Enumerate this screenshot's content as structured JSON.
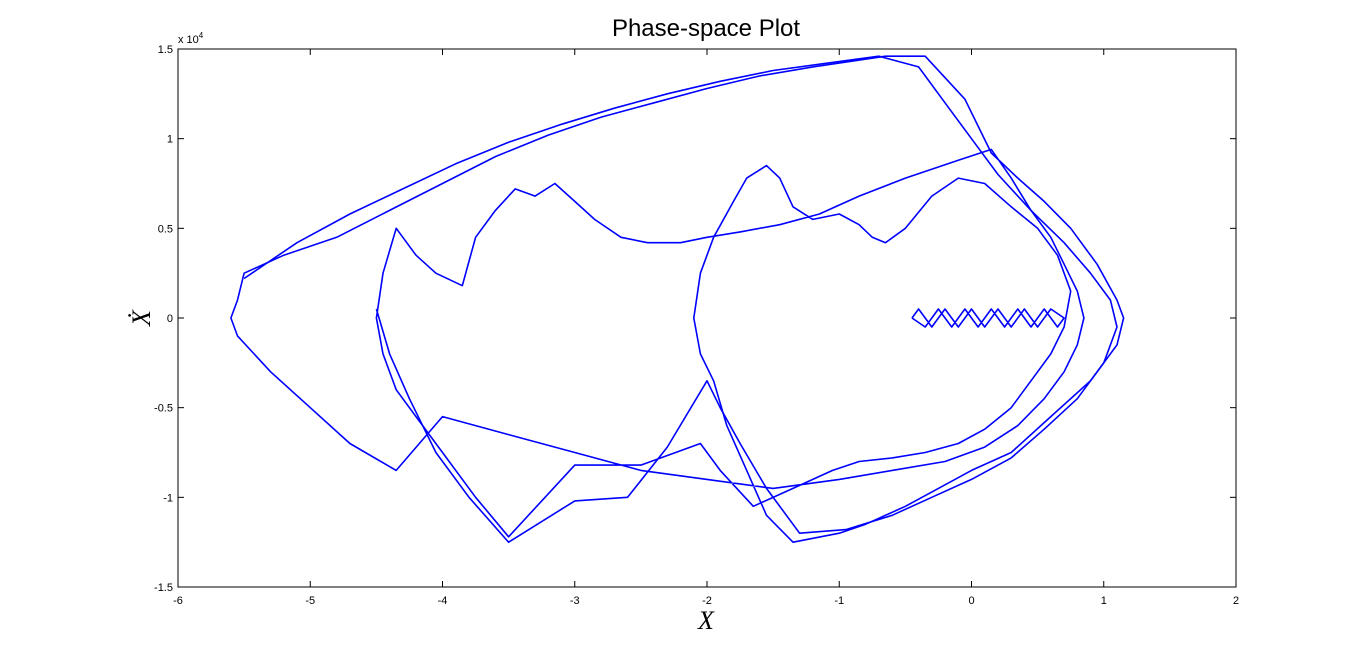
{
  "chart_data": {
    "type": "line",
    "title": "Phase-space Plot",
    "xlabel": "X",
    "ylabel": "Ẋ",
    "y_exponent_label": "x 10",
    "y_exponent_power": "4",
    "xlim": [
      -6,
      2
    ],
    "ylim": [
      -1.5,
      1.5
    ],
    "x_ticks": [
      "-6",
      "-5",
      "-4",
      "-3",
      "-2",
      "-1",
      "0",
      "1",
      "2"
    ],
    "y_ticks": [
      "1.5",
      "1",
      "0.5",
      "0",
      "-0.5",
      "-1",
      "-1.5"
    ],
    "grid": false,
    "series_color": "#0000ff",
    "series": [
      {
        "values_note_excluded": true,
        "points": [
          [
            -0.65,
            1.46
          ],
          [
            -0.35,
            1.46
          ],
          [
            -0.05,
            1.22
          ],
          [
            0.15,
            0.92
          ],
          [
            0.35,
            0.78
          ],
          [
            0.55,
            0.65
          ],
          [
            0.75,
            0.5
          ],
          [
            0.95,
            0.3
          ],
          [
            1.1,
            0.1
          ],
          [
            1.15,
            0.0
          ],
          [
            1.1,
            -0.15
          ],
          [
            0.9,
            -0.35
          ],
          [
            0.6,
            -0.55
          ],
          [
            0.3,
            -0.75
          ],
          [
            0.0,
            -0.85
          ],
          [
            -0.25,
            -0.95
          ],
          [
            -0.5,
            -1.05
          ],
          [
            -0.8,
            -1.15
          ],
          [
            -1.0,
            -1.2
          ],
          [
            -1.35,
            -1.25
          ],
          [
            -1.55,
            -1.1
          ],
          [
            -1.7,
            -0.85
          ],
          [
            -1.85,
            -0.6
          ],
          [
            -1.95,
            -0.35
          ],
          [
            -2.05,
            -0.2
          ],
          [
            -2.1,
            0.0
          ],
          [
            -2.05,
            0.25
          ],
          [
            -1.95,
            0.45
          ],
          [
            -1.8,
            0.65
          ],
          [
            -1.7,
            0.78
          ],
          [
            -1.55,
            0.85
          ],
          [
            -1.45,
            0.78
          ],
          [
            -1.35,
            0.62
          ],
          [
            -1.2,
            0.55
          ],
          [
            -1.0,
            0.58
          ],
          [
            -0.85,
            0.52
          ],
          [
            -0.75,
            0.45
          ],
          [
            -0.65,
            0.42
          ],
          [
            -0.5,
            0.5
          ],
          [
            -0.3,
            0.68
          ],
          [
            -0.1,
            0.78
          ],
          [
            0.1,
            0.75
          ],
          [
            0.3,
            0.62
          ],
          [
            0.5,
            0.5
          ],
          [
            0.65,
            0.35
          ],
          [
            0.75,
            0.15
          ],
          [
            0.7,
            -0.05
          ],
          [
            0.6,
            -0.2
          ],
          [
            0.45,
            -0.35
          ],
          [
            0.3,
            -0.5
          ],
          [
            0.1,
            -0.62
          ],
          [
            -0.1,
            -0.7
          ],
          [
            -0.35,
            -0.75
          ],
          [
            -0.6,
            -0.78
          ],
          [
            -0.85,
            -0.8
          ],
          [
            -1.05,
            -0.85
          ],
          [
            -1.35,
            -0.95
          ],
          [
            -1.65,
            -1.05
          ],
          [
            -1.9,
            -0.85
          ],
          [
            -2.05,
            -0.7
          ],
          [
            -2.5,
            -0.82
          ],
          [
            -3.0,
            -0.82
          ],
          [
            -3.5,
            -1.22
          ],
          [
            -3.75,
            -1.0
          ],
          [
            -4.0,
            -0.75
          ],
          [
            -4.2,
            -0.55
          ],
          [
            -4.35,
            -0.4
          ],
          [
            -4.45,
            -0.2
          ],
          [
            -4.5,
            0.0
          ],
          [
            -4.45,
            0.25
          ],
          [
            -4.35,
            0.5
          ],
          [
            -4.2,
            0.35
          ],
          [
            -4.05,
            0.25
          ],
          [
            -3.85,
            0.18
          ],
          [
            -3.75,
            0.45
          ],
          [
            -3.6,
            0.6
          ],
          [
            -3.45,
            0.72
          ],
          [
            -3.3,
            0.68
          ],
          [
            -3.15,
            0.75
          ],
          [
            -3.0,
            0.65
          ],
          [
            -2.85,
            0.55
          ],
          [
            -2.65,
            0.45
          ],
          [
            -2.45,
            0.42
          ],
          [
            -2.2,
            0.42
          ],
          [
            -2.0,
            0.45
          ],
          [
            -1.75,
            0.48
          ],
          [
            -1.45,
            0.52
          ],
          [
            -1.15,
            0.58
          ],
          [
            -0.85,
            0.68
          ],
          [
            -0.5,
            0.78
          ],
          [
            -0.1,
            0.88
          ],
          [
            0.15,
            0.94
          ],
          [
            0.3,
            0.78
          ],
          [
            0.45,
            0.6
          ],
          [
            0.6,
            0.45
          ],
          [
            0.7,
            0.3
          ],
          [
            0.8,
            0.15
          ],
          [
            0.85,
            0.0
          ],
          [
            0.8,
            -0.15
          ],
          [
            0.7,
            -0.3
          ],
          [
            0.55,
            -0.45
          ],
          [
            0.35,
            -0.6
          ],
          [
            0.1,
            -0.72
          ],
          [
            -0.2,
            -0.8
          ],
          [
            -0.6,
            -0.85
          ],
          [
            -1.0,
            -0.9
          ],
          [
            -1.5,
            -0.95
          ],
          [
            -2.0,
            -0.9
          ],
          [
            -2.5,
            -0.85
          ],
          [
            -3.0,
            -0.75
          ],
          [
            -3.5,
            -0.65
          ],
          [
            -4.0,
            -0.55
          ],
          [
            -4.35,
            -0.85
          ],
          [
            -4.7,
            -0.7
          ],
          [
            -5.0,
            -0.5
          ],
          [
            -5.3,
            -0.3
          ],
          [
            -5.55,
            -0.1
          ],
          [
            -5.6,
            0.0
          ],
          [
            -5.55,
            0.1
          ],
          [
            -5.5,
            0.25
          ],
          [
            -5.2,
            0.35
          ],
          [
            -4.8,
            0.45
          ],
          [
            -4.4,
            0.6
          ],
          [
            -4.0,
            0.75
          ],
          [
            -3.6,
            0.9
          ],
          [
            -3.2,
            1.02
          ],
          [
            -2.8,
            1.12
          ],
          [
            -2.4,
            1.2
          ],
          [
            -2.0,
            1.28
          ],
          [
            -1.6,
            1.35
          ],
          [
            -1.2,
            1.4
          ],
          [
            -0.65,
            1.46
          ]
        ]
      },
      {
        "values_note_excluded": true,
        "points": [
          [
            -5.5,
            0.22
          ],
          [
            -5.1,
            0.42
          ],
          [
            -4.7,
            0.58
          ],
          [
            -4.3,
            0.72
          ],
          [
            -3.9,
            0.86
          ],
          [
            -3.5,
            0.98
          ],
          [
            -3.1,
            1.08
          ],
          [
            -2.7,
            1.17
          ],
          [
            -2.3,
            1.25
          ],
          [
            -1.9,
            1.32
          ],
          [
            -1.5,
            1.38
          ],
          [
            -1.1,
            1.42
          ],
          [
            -0.7,
            1.46
          ],
          [
            -0.4,
            1.4
          ],
          [
            -0.2,
            1.2
          ],
          [
            0.0,
            1.0
          ],
          [
            0.2,
            0.8
          ],
          [
            0.45,
            0.6
          ],
          [
            0.7,
            0.42
          ],
          [
            0.9,
            0.25
          ],
          [
            1.05,
            0.1
          ],
          [
            1.1,
            -0.05
          ],
          [
            1.0,
            -0.25
          ],
          [
            0.8,
            -0.45
          ],
          [
            0.55,
            -0.62
          ],
          [
            0.3,
            -0.78
          ],
          [
            0.0,
            -0.9
          ],
          [
            -0.3,
            -1.0
          ],
          [
            -0.6,
            -1.1
          ],
          [
            -0.95,
            -1.18
          ],
          [
            -1.3,
            -1.2
          ],
          [
            -1.55,
            -0.95
          ],
          [
            -1.75,
            -0.7
          ],
          [
            -1.9,
            -0.5
          ],
          [
            -2.0,
            -0.35
          ],
          [
            -2.3,
            -0.72
          ],
          [
            -2.6,
            -1.0
          ],
          [
            -3.0,
            -1.02
          ],
          [
            -3.5,
            -1.25
          ],
          [
            -3.8,
            -1.0
          ],
          [
            -4.05,
            -0.75
          ],
          [
            -4.25,
            -0.45
          ],
          [
            -4.4,
            -0.2
          ],
          [
            -4.5,
            0.05
          ]
        ]
      },
      {
        "values_note_excluded": true,
        "points": [
          [
            -0.45,
            0.0
          ],
          [
            -0.4,
            0.05
          ],
          [
            -0.3,
            -0.05
          ],
          [
            -0.2,
            0.05
          ],
          [
            -0.1,
            -0.05
          ],
          [
            0.0,
            0.05
          ],
          [
            0.1,
            -0.05
          ],
          [
            0.2,
            0.05
          ],
          [
            0.3,
            -0.05
          ],
          [
            0.4,
            0.05
          ],
          [
            0.5,
            -0.05
          ],
          [
            0.6,
            0.05
          ],
          [
            0.7,
            0.0
          ],
          [
            0.65,
            -0.05
          ],
          [
            0.55,
            0.05
          ],
          [
            0.45,
            -0.05
          ],
          [
            0.35,
            0.05
          ],
          [
            0.25,
            -0.05
          ],
          [
            0.15,
            0.05
          ],
          [
            0.05,
            -0.05
          ],
          [
            -0.05,
            0.05
          ],
          [
            -0.15,
            -0.05
          ],
          [
            -0.25,
            0.05
          ],
          [
            -0.35,
            -0.05
          ],
          [
            -0.45,
            0.0
          ]
        ]
      }
    ]
  }
}
